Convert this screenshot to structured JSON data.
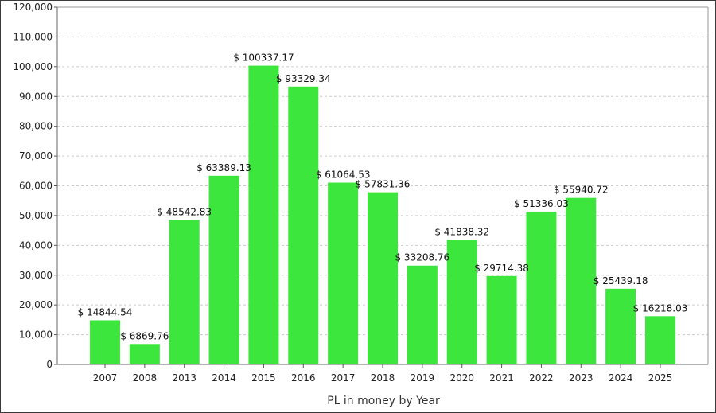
{
  "chart_data": {
    "type": "bar",
    "title": "",
    "xlabel": "PL in money by Year",
    "ylabel": "",
    "ylim": [
      0,
      120000
    ],
    "yticks": [
      "0",
      "10,000",
      "20,000",
      "30,000",
      "40,000",
      "50,000",
      "60,000",
      "70,000",
      "80,000",
      "90,000",
      "100,000",
      "110,000",
      "120,000"
    ],
    "grid": true,
    "bar_color": "#3de63d",
    "categories": [
      "2007",
      "2008",
      "2013",
      "2014",
      "2015",
      "2016",
      "2017",
      "2018",
      "2019",
      "2020",
      "2021",
      "2022",
      "2023",
      "2024",
      "2025"
    ],
    "values": [
      14844.54,
      6869.76,
      48542.83,
      63389.13,
      100337.17,
      93329.34,
      61064.53,
      57831.36,
      33208.76,
      41838.32,
      29714.38,
      51336.03,
      55940.72,
      25439.18,
      16218.03
    ],
    "data_labels": [
      "$ 14844.54",
      "$ 6869.76",
      "$ 48542.83",
      "$ 63389.13",
      "$ 100337.17",
      "$ 93329.34",
      "$ 61064.53",
      "$ 57831.36",
      "$ 33208.76",
      "$ 41838.32",
      "$ 29714.38",
      "$ 51336.03",
      "$ 55940.72",
      "$ 25439.18",
      "$ 16218.03"
    ]
  }
}
